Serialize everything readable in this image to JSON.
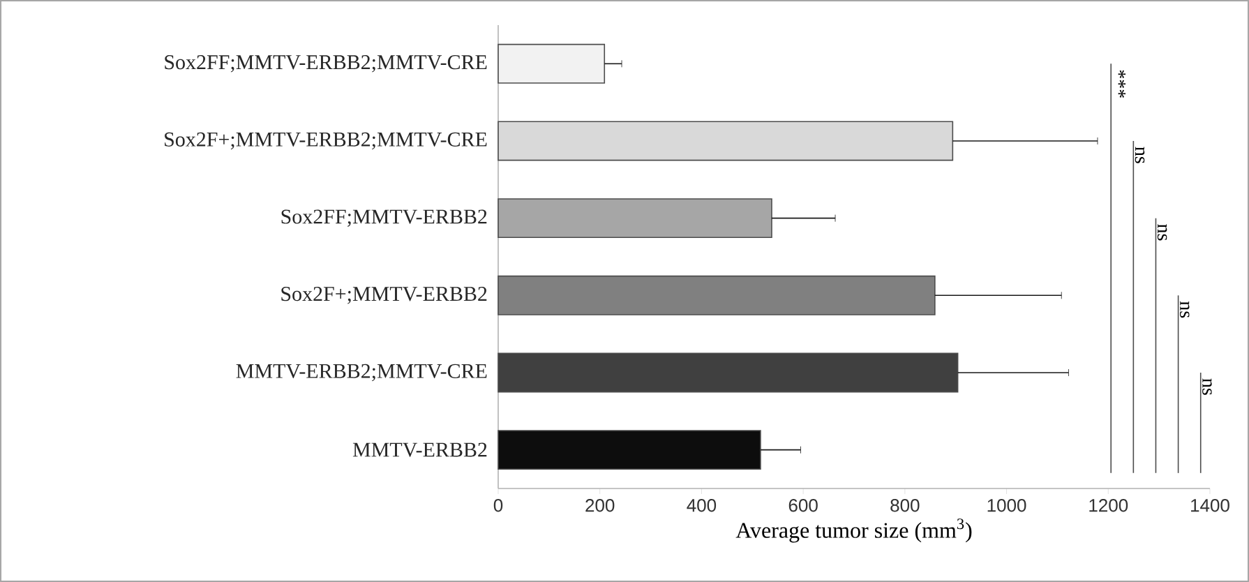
{
  "chart_data": {
    "type": "bar",
    "orientation": "horizontal",
    "categories": [
      "Sox2FF;MMTV-ERBB2;MMTV-CRE",
      "Sox2F+;MMTV-ERBB2;MMTV-CRE",
      "Sox2FF;MMTV-ERBB2",
      "Sox2F+;MMTV-ERBB2",
      "MMTV-ERBB2;MMTV-CRE",
      "MMTV-ERBB2"
    ],
    "values": [
      209,
      894,
      538,
      859,
      904,
      516
    ],
    "errors": [
      [
        209,
        243
      ],
      [
        894,
        1179
      ],
      [
        538,
        663
      ],
      [
        859,
        1108
      ],
      [
        904,
        1122
      ],
      [
        516,
        595
      ]
    ],
    "colors": [
      "#f2f2f2",
      "#d9d9d9",
      "#a6a6a6",
      "#808080",
      "#404040",
      "#0d0d0d"
    ],
    "xlabel": "Average tumor size (mm$^{3}$)",
    "xlim": [
      0,
      1400
    ],
    "xticks": [
      0,
      200,
      400,
      600,
      800,
      1000,
      1200,
      1400
    ],
    "annotations": [
      "***",
      "ns",
      "ns",
      "ns",
      "ns"
    ]
  }
}
